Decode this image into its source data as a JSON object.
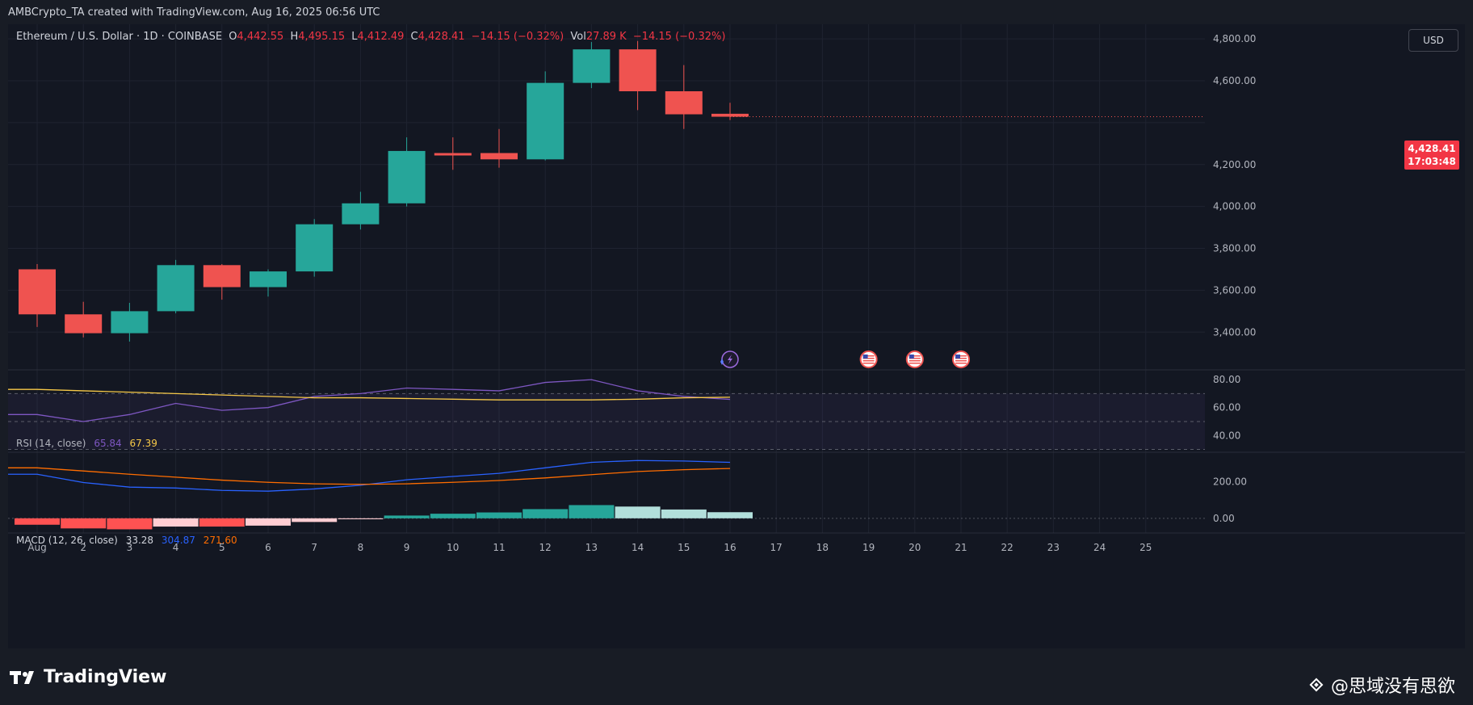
{
  "header": {
    "caption": "AMBCrypto_TA created with TradingView.com, Aug 16, 2025 06:56 UTC"
  },
  "legend": {
    "symbol": "Ethereum / U.S. Dollar · 1D · COINBASE",
    "open_label": "O",
    "open": "4,442.55",
    "high_label": "H",
    "high": "4,495.15",
    "low_label": "L",
    "low": "4,412.49",
    "close_label": "C",
    "close": "4,428.41",
    "change": "−14.15 (−0.32%)",
    "vol_label": "Vol",
    "vol": "27.89 K",
    "vol_change": "−14.15 (−0.32%)"
  },
  "currency": "USD",
  "last_price": {
    "price": "4,428.41",
    "countdown": "17:03:48"
  },
  "rsi": {
    "label": "RSI (14, close)",
    "value1": "65.84",
    "value2": "67.39"
  },
  "macd": {
    "label": "MACD (12, 26, close)",
    "hist": "33.28",
    "macd": "304.87",
    "signal": "271.60"
  },
  "brand": {
    "name": "TradingView"
  },
  "watermark": "@思域没有思欲",
  "colors": {
    "up": "#26a69a",
    "down": "#ef5350",
    "rsi": "#7e57c2",
    "rsi_ma": "#f7c948",
    "macd": "#2962ff",
    "signal": "#ff6d00",
    "hist_up_strong": "#26a69a",
    "hist_up_weak": "#b2dfdb",
    "hist_down_strong": "#ff5252",
    "hist_down_weak": "#ffcdd2"
  },
  "chart_data": [
    {
      "type": "candlestick",
      "title": "Ethereum / U.S. Dollar · 1D · COINBASE",
      "x": [
        "Aug 1",
        "2",
        "3",
        "4",
        "5",
        "6",
        "7",
        "8",
        "9",
        "10",
        "11",
        "12",
        "13",
        "14",
        "15",
        "16"
      ],
      "x_ticks": [
        "Aug",
        "2",
        "3",
        "4",
        "5",
        "6",
        "7",
        "8",
        "9",
        "10",
        "11",
        "12",
        "13",
        "14",
        "15",
        "16",
        "17",
        "18",
        "19",
        "20",
        "21",
        "22",
        "23",
        "24",
        "25"
      ],
      "x_range_days": [
        1,
        25
      ],
      "open": [
        3700,
        3485,
        3395,
        3500,
        3720,
        3615,
        3690,
        3915,
        4015,
        4255,
        4255,
        4225,
        4590,
        4750,
        4550,
        4442.55
      ],
      "high": [
        3725,
        3545,
        3540,
        3745,
        3725,
        3700,
        3940,
        4070,
        4330,
        4330,
        4370,
        4645,
        4785,
        4790,
        4675,
        4495.15
      ],
      "low": [
        3425,
        3375,
        3355,
        3490,
        3555,
        3570,
        3665,
        3890,
        4000,
        4175,
        4185,
        4220,
        4565,
        4460,
        4370,
        4412.49
      ],
      "close": [
        3485,
        3395,
        3500,
        3720,
        3615,
        3690,
        3915,
        4015,
        4265,
        4245,
        4225,
        4590,
        4750,
        4550,
        4440,
        4428.41
      ],
      "y_ticks": [
        "3,400.00",
        "3,600.00",
        "3,800.00",
        "4,000.00",
        "4,200.00",
        "4,600.00",
        "4,800.00"
      ],
      "y_tick_values": [
        3400,
        3600,
        3800,
        4000,
        4200,
        4600,
        4800
      ],
      "ylim": [
        3220,
        4870
      ],
      "event_days": [
        19,
        20,
        21
      ]
    },
    {
      "type": "line",
      "title": "RSI (14, close)",
      "x": [
        "Aug 1",
        "2",
        "3",
        "4",
        "5",
        "6",
        "7",
        "8",
        "9",
        "10",
        "11",
        "12",
        "13",
        "14",
        "15",
        "16"
      ],
      "series": [
        {
          "name": "RSI",
          "values": [
            55,
            50,
            55,
            63,
            58,
            60,
            68,
            70,
            74,
            73,
            72,
            78,
            80,
            72,
            68,
            65.84
          ]
        },
        {
          "name": "RSI-based MA",
          "values": [
            73,
            72,
            71,
            70,
            69,
            68,
            67,
            67,
            66.5,
            66,
            65.5,
            65.5,
            65.5,
            66,
            67,
            67.39
          ]
        }
      ],
      "y_ticks": [
        "40.00",
        "60.00",
        "80.00"
      ],
      "y_tick_values": [
        40,
        60,
        80
      ],
      "bands": [
        30,
        50,
        70
      ],
      "ylim": [
        28,
        87
      ]
    },
    {
      "type": "bar+line",
      "title": "MACD (12, 26, close)",
      "x": [
        "Aug 1",
        "2",
        "3",
        "4",
        "5",
        "6",
        "7",
        "8",
        "9",
        "10",
        "11",
        "12",
        "13",
        "14",
        "15",
        "16"
      ],
      "histogram": [
        -35,
        -55,
        -60,
        -45,
        -45,
        -40,
        -20,
        -5,
        15,
        25,
        32,
        50,
        72,
        64,
        48,
        33.28
      ],
      "series": [
        {
          "name": "MACD",
          "values": [
            240,
            195,
            170,
            165,
            152,
            148,
            160,
            180,
            210,
            228,
            245,
            275,
            305,
            315,
            312,
            304.87
          ]
        },
        {
          "name": "Signal",
          "values": [
            275,
            258,
            240,
            224,
            208,
            196,
            188,
            185,
            188,
            196,
            206,
            220,
            238,
            255,
            265,
            271.6
          ]
        }
      ],
      "y_ticks": [
        "0.00",
        "200.00"
      ],
      "y_tick_values": [
        0,
        200
      ],
      "ylim": [
        -80,
        360
      ]
    }
  ]
}
